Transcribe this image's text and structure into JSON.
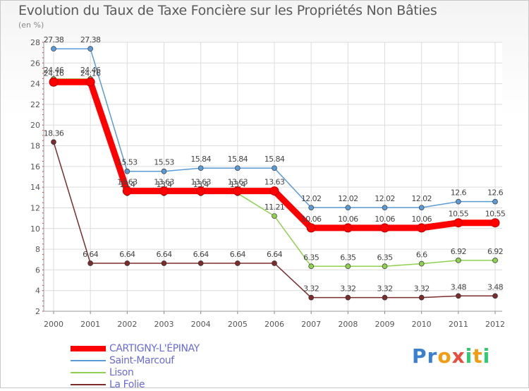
{
  "chart_data": {
    "type": "line",
    "title": "Evolution du Taux de Taxe Foncière sur les Propriétés Non Bâties",
    "unit_label": "(en %)",
    "categories": [
      "2000",
      "2001",
      "2002",
      "2003",
      "2004",
      "2005",
      "2006",
      "2007",
      "2008",
      "2009",
      "2010",
      "2011",
      "2012"
    ],
    "ylim": [
      2,
      28
    ],
    "yticks": [
      "2",
      "4",
      "6",
      "8",
      "10",
      "12",
      "14",
      "16",
      "18",
      "20",
      "22",
      "24",
      "26",
      "28"
    ],
    "grid": true,
    "legend_position": "bottom-left",
    "series": [
      {
        "name": "Saint-Marcouf",
        "color": "#5b9bd5",
        "values": [
          27.38,
          27.38,
          15.53,
          15.53,
          15.84,
          15.84,
          15.84,
          12.02,
          12.02,
          12.02,
          12.02,
          12.6,
          12.6
        ],
        "labels": [
          "27.38",
          "27.38",
          "15.53",
          "15.53",
          "15.84",
          "15.84",
          "15.84",
          "12.02",
          "12.02",
          "12.02",
          "12.02",
          "12.6",
          "12.6"
        ]
      },
      {
        "name": "Lison",
        "color": "#8fd14f",
        "values": [
          24.46,
          24.46,
          13.4,
          13.4,
          13.4,
          13.4,
          11.21,
          6.35,
          6.35,
          6.35,
          6.6,
          6.92,
          6.92
        ],
        "labels": [
          "24.46",
          "24.46",
          "13.4",
          "13.4",
          "13.4",
          "13.4",
          "11.21",
          "6.35",
          "6.35",
          "6.35",
          "6.6",
          "6.92",
          "6.92"
        ]
      },
      {
        "name": "CARTIGNY-L'ÉPINAY",
        "color": "#ff0000",
        "values": [
          24.16,
          24.16,
          13.63,
          13.63,
          13.63,
          13.63,
          13.63,
          10.06,
          10.06,
          10.06,
          10.06,
          10.55,
          10.55
        ],
        "labels": [
          "24.16",
          "24.16",
          "13.63",
          "13.63",
          "13.63",
          "13.63",
          "13.63",
          "10.06",
          "10.06",
          "10.06",
          "10.06",
          "10.55",
          "10.55"
        ]
      },
      {
        "name": "La Folie",
        "color": "#7b2c2c",
        "values": [
          18.36,
          6.64,
          6.64,
          6.64,
          6.64,
          6.64,
          6.64,
          3.32,
          3.32,
          3.32,
          3.32,
          3.48,
          3.48
        ],
        "labels": [
          "18.36",
          "6.64",
          "6.64",
          "6.64",
          "6.64",
          "6.64",
          "6.64",
          "3.32",
          "3.32",
          "3.32",
          "3.32",
          "3.48",
          "3.48"
        ]
      }
    ]
  },
  "legend": [
    {
      "name": "CARTIGNY-L'ÉPINAY",
      "color": "#ff0000"
    },
    {
      "name": "Saint-Marcouf",
      "color": "#5b9bd5"
    },
    {
      "name": "Lison",
      "color": "#8fd14f"
    },
    {
      "name": "La Folie",
      "color": "#7b2c2c"
    }
  ],
  "brand": {
    "letters": [
      "P",
      "r",
      "o",
      "x",
      "i",
      "t",
      "i"
    ],
    "colors": [
      "#3a7fd0",
      "#3a7fd0",
      "#f39c12",
      "#e74c3c",
      "#2ecc71",
      "#f39c12",
      "#2ecc71"
    ]
  }
}
